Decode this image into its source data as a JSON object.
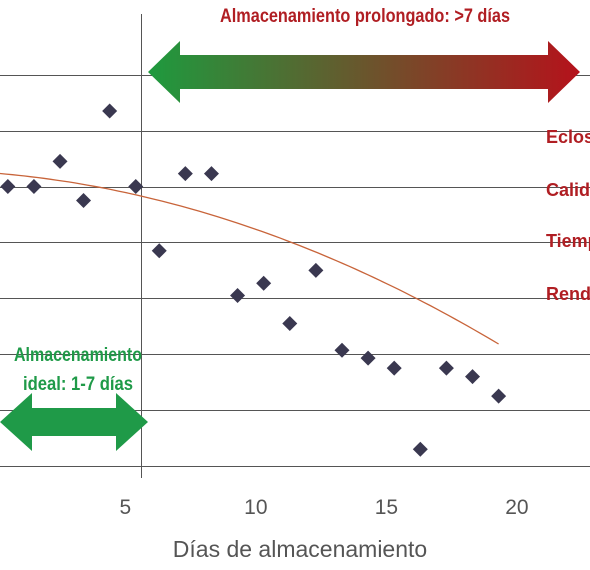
{
  "chart_data": {
    "type": "scatter",
    "title": "",
    "xlabel": "Días de almacenamiento",
    "ylabel": "",
    "xlim": [
      0.2,
      22.8
    ],
    "ylim": [
      0,
      7.8
    ],
    "x_ticks": [
      5,
      10,
      15,
      20
    ],
    "y_gridlines": [
      0,
      1,
      2,
      3,
      4,
      5,
      6,
      7
    ],
    "divider_x": 5.6,
    "grid": "horizontal",
    "series": [
      {
        "points": [
          {
            "x": 0.5,
            "y": 5.0
          },
          {
            "x": 1.5,
            "y": 5.0
          },
          {
            "x": 2.5,
            "y": 5.45
          },
          {
            "x": 3.4,
            "y": 4.75
          },
          {
            "x": 4.4,
            "y": 6.35
          },
          {
            "x": 5.4,
            "y": 5.0
          },
          {
            "x": 6.3,
            "y": 3.85
          },
          {
            "x": 7.3,
            "y": 5.23
          },
          {
            "x": 8.3,
            "y": 5.23
          },
          {
            "x": 9.3,
            "y": 3.05
          },
          {
            "x": 10.3,
            "y": 3.27
          },
          {
            "x": 11.3,
            "y": 2.55
          },
          {
            "x": 12.3,
            "y": 3.5
          },
          {
            "x": 13.3,
            "y": 2.07
          },
          {
            "x": 14.3,
            "y": 1.93
          },
          {
            "x": 15.3,
            "y": 1.75
          },
          {
            "x": 16.3,
            "y": 0.3
          },
          {
            "x": 17.3,
            "y": 1.75
          },
          {
            "x": 18.3,
            "y": 1.6
          },
          {
            "x": 19.3,
            "y": 1.25
          }
        ]
      }
    ],
    "trendline": {
      "type": "quadratic",
      "x_range": [
        0.2,
        19.3
      ],
      "points": [
        {
          "x": 0.2,
          "y": 5.23
        },
        {
          "x": 5.0,
          "y": 4.9
        },
        {
          "x": 10.0,
          "y": 4.02
        },
        {
          "x": 15.0,
          "y": 2.56
        },
        {
          "x": 19.3,
          "y": 0.53
        }
      ]
    },
    "annotations": {
      "prolonged": {
        "label": "Almacenamiento prolongado: >7 días",
        "x_start": 5.6,
        "x_end": 22.8
      },
      "ideal": {
        "line1": "Almacenamiento",
        "line2": "ideal: 1-7 días",
        "x_start": 0.2,
        "x_end": 5.6
      },
      "effects": [
        "Eclosi",
        "Calida",
        "Tiemp",
        "Rendi"
      ]
    },
    "colors": {
      "points": "#3a3850",
      "trendline": "#c8643a",
      "grid": "#555555",
      "prolonged_label": "#b01e23",
      "prolonged_start": "#1e9a3e",
      "prolonged_end": "#b5121b",
      "ideal": "#1f9a48",
      "effects": "#b01e23"
    }
  }
}
